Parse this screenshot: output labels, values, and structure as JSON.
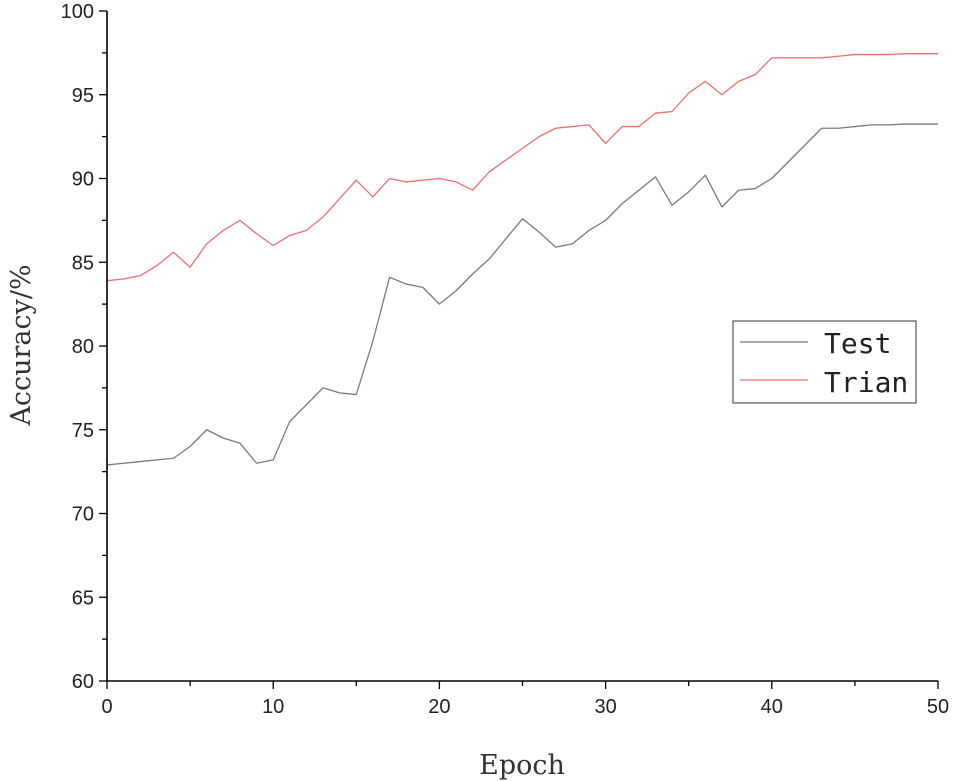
{
  "chart_data": {
    "type": "line",
    "title": "",
    "xlabel": "Epoch",
    "ylabel": "Accuracy/%",
    "xlim": [
      0,
      50
    ],
    "ylim": [
      60,
      100
    ],
    "x_ticks": [
      0,
      10,
      20,
      30,
      40,
      50
    ],
    "y_ticks": [
      60,
      65,
      70,
      75,
      80,
      85,
      90,
      95,
      100
    ],
    "grid": false,
    "legend_position": "center-right",
    "series": [
      {
        "name": "Test",
        "color": "#7a7a7a",
        "x": [
          0,
          1,
          2,
          3,
          4,
          5,
          6,
          7,
          8,
          9,
          10,
          11,
          12,
          13,
          14,
          15,
          16,
          17,
          18,
          19,
          20,
          21,
          22,
          23,
          24,
          25,
          26,
          27,
          28,
          29,
          30,
          31,
          32,
          33,
          34,
          35,
          36,
          37,
          38,
          39,
          40,
          41,
          42,
          43,
          44,
          45,
          46,
          47,
          48,
          49,
          50
        ],
        "values": [
          72.9,
          73.0,
          73.1,
          73.2,
          73.3,
          74.0,
          75.0,
          74.5,
          74.2,
          73.0,
          73.2,
          75.5,
          76.5,
          77.5,
          77.2,
          77.1,
          80.3,
          84.1,
          83.7,
          83.5,
          82.5,
          83.3,
          84.3,
          85.2,
          86.4,
          87.6,
          86.8,
          85.9,
          86.1,
          86.9,
          87.5,
          88.5,
          89.3,
          90.1,
          88.4,
          89.2,
          90.2,
          88.3,
          89.3,
          89.4,
          90.0,
          91.0,
          92.0,
          93.0,
          93.0,
          93.1,
          93.2,
          93.2,
          93.25,
          93.25,
          93.25
        ]
      },
      {
        "name": "Trian",
        "color": "#f26d6d",
        "x": [
          0,
          1,
          2,
          3,
          4,
          5,
          6,
          7,
          8,
          9,
          10,
          11,
          12,
          13,
          14,
          15,
          16,
          17,
          18,
          19,
          20,
          21,
          22,
          23,
          24,
          25,
          26,
          27,
          28,
          29,
          30,
          31,
          32,
          33,
          34,
          35,
          36,
          37,
          38,
          39,
          40,
          41,
          42,
          43,
          44,
          45,
          46,
          47,
          48,
          49,
          50
        ],
        "values": [
          83.9,
          84.0,
          84.2,
          84.8,
          85.6,
          84.7,
          86.1,
          86.9,
          87.5,
          86.7,
          86.0,
          86.6,
          86.9,
          87.7,
          88.8,
          89.9,
          88.9,
          90.0,
          89.8,
          89.9,
          90.0,
          89.8,
          89.3,
          90.4,
          91.1,
          91.8,
          92.5,
          93.0,
          93.1,
          93.2,
          92.1,
          93.1,
          93.1,
          93.9,
          94.0,
          95.1,
          95.8,
          95.0,
          95.8,
          96.2,
          97.2,
          97.2,
          97.2,
          97.2,
          97.3,
          97.4,
          97.4,
          97.4,
          97.45,
          97.45,
          97.45
        ]
      }
    ]
  },
  "colors": {
    "axis": "#000000",
    "background": "#ffffff",
    "legend_border": "#333333"
  }
}
